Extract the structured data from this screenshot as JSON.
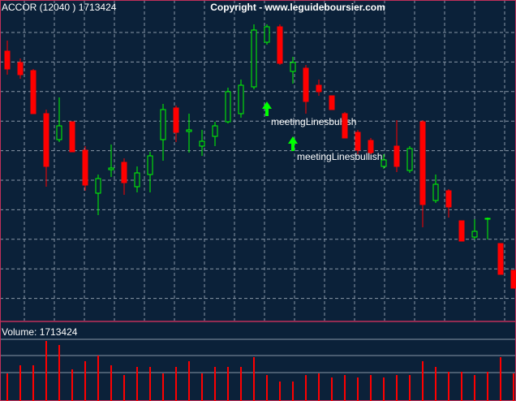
{
  "chart_data": {
    "type": "candlestick",
    "title": "ACCOR (12040 ) 1713424",
    "subtitle": "Copyright - www.leguideboursier.com",
    "volume_label": "Volume: 1713424",
    "annotations": [
      "meetingLinesbullish",
      "meetingLinesbullish"
    ],
    "up_color": "#00ff00",
    "down_color": "#ff0000",
    "volume_color": "#ff0000",
    "ylim": [
      0,
      395
    ],
    "volume_ylim": [
      0,
      96
    ],
    "grid": true,
    "open": [
      332,
      318,
      308,
      255,
      223,
      245,
      210,
      157,
      186,
      195,
      165,
      180,
      223,
      262,
      233,
      215,
      227,
      245,
      255,
      288,
      343,
      362,
      307,
      311,
      290,
      277,
      255,
      232,
      222,
      190,
      215,
      185,
      245,
      148,
      160,
      123,
      103,
      125,
      95,
      62
    ],
    "high": [
      345,
      323,
      310,
      260,
      275,
      245,
      215,
      180,
      217,
      200,
      190,
      208,
      267,
      265,
      255,
      235,
      245,
      287,
      297,
      365,
      365,
      365,
      325,
      315,
      297,
      277,
      257,
      235,
      225,
      205,
      247,
      215,
      247,
      180,
      162,
      123,
      125,
      127,
      95,
      62
    ],
    "low": [
      303,
      298,
      255,
      165,
      220,
      208,
      160,
      130,
      177,
      155,
      158,
      158,
      197,
      220,
      207,
      203,
      215,
      243,
      250,
      285,
      340,
      315,
      292,
      255,
      277,
      260,
      225,
      205,
      205,
      187,
      183,
      182,
      115,
      145,
      127,
      98,
      100,
      100,
      57,
      40
    ],
    "close": [
      310,
      303,
      255,
      190,
      240,
      208,
      167,
      175,
      188,
      170,
      182,
      203,
      260,
      232,
      235,
      221,
      240,
      282,
      290,
      358,
      362,
      317,
      318,
      270,
      282,
      260,
      225,
      210,
      207,
      198,
      190,
      212,
      143,
      168,
      140,
      98,
      110,
      126,
      57,
      40
    ],
    "volume": [
      34,
      44,
      44,
      74,
      69,
      39,
      49,
      56,
      44,
      32,
      42,
      42,
      34,
      42,
      49,
      34,
      42,
      42,
      42,
      54,
      32,
      24,
      24,
      32,
      34,
      29,
      32,
      29,
      32,
      29,
      32,
      32,
      49,
      42,
      36,
      36,
      32,
      36,
      54,
      34
    ]
  }
}
